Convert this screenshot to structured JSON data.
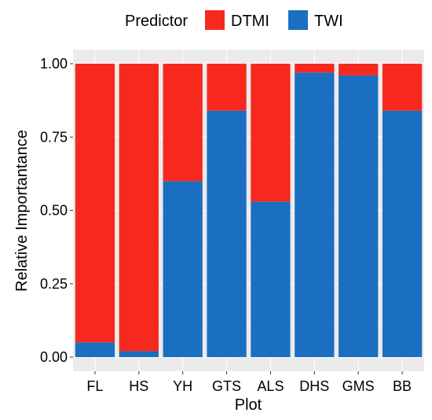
{
  "chart_data": {
    "type": "bar",
    "stacked": true,
    "categories": [
      "FL",
      "HS",
      "YH",
      "GTS",
      "ALS",
      "DHS",
      "GMS",
      "BB"
    ],
    "series": [
      {
        "name": "TWI",
        "color": "#1a6fc0",
        "values": [
          0.05,
          0.02,
          0.6,
          0.84,
          0.53,
          0.97,
          0.96,
          0.84
        ]
      },
      {
        "name": "DTMI",
        "color": "#f7291f",
        "values": [
          0.95,
          0.98,
          0.4,
          0.16,
          0.47,
          0.03,
          0.04,
          0.16
        ]
      }
    ],
    "xlabel": "Plot",
    "ylabel": "Relative Importantance",
    "ylim": [
      0,
      1
    ],
    "yticks": [
      "0.00",
      "0.25",
      "0.50",
      "0.75",
      "1.00"
    ],
    "grid": true,
    "legend": {
      "title": "Predictor",
      "position": "top",
      "entries": [
        "DTMI",
        "TWI"
      ]
    }
  },
  "colors": {
    "panel_background": "#ebebeb",
    "gridline": "#ffffff"
  }
}
